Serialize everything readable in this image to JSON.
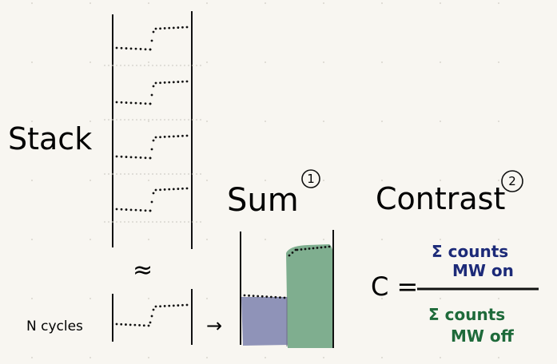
{
  "labels": {
    "stack": "Stack",
    "sum": "Sum",
    "sum_step": "1",
    "contrast": "Contrast",
    "contrast_step": "2",
    "n_cycles": "N cycles",
    "approx": "≈",
    "arrow": "→",
    "c_equals": "C ="
  },
  "formula": {
    "numerator_line1": "Σ counts",
    "numerator_line2": "MW on",
    "denominator_line1": "Σ counts",
    "denominator_line2": "MW off"
  },
  "colors": {
    "background": "#f8f6f1",
    "ink": "#111111",
    "bar_mw_on": "#8f93b8",
    "bar_mw_off": "#7fae8f",
    "numerator_ink": "#1c2a78",
    "denominator_ink": "#1e6a3a",
    "divider": "#c9c6bf"
  },
  "stack_cycle_count_shown": 4
}
